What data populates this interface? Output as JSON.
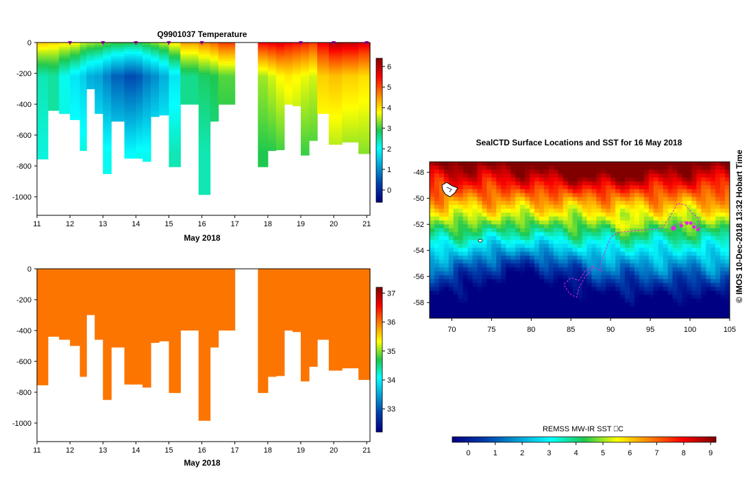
{
  "temp_title": "Q9901037  Temperature",
  "sal_title": "",
  "map_title": "SealCTD Surface Locations and SST for 16 May 2018",
  "credit": "© IMOS 10-Dec-2018 13:32 Hobart Time",
  "sst_colorbar_label": "REMSS MW-IR SST ⎕C",
  "colors": {
    "frame": "#000000",
    "track": "#e026e0",
    "salinity_fill": "#f39600",
    "profile_marker": "#c000c0"
  },
  "chart_data": [
    {
      "type": "heatmap",
      "name": "temperature-section",
      "title": "Q9901037  Temperature",
      "xlabel": "May 2018",
      "ylabel": "",
      "x_ticks": [
        "11",
        "12",
        "13",
        "14",
        "15",
        "16",
        "17",
        "18",
        "19",
        "20",
        "21"
      ],
      "y_ticks": [
        "0",
        "-200",
        "-400",
        "-600",
        "-800",
        "-1000"
      ],
      "xlim": [
        11,
        21.1
      ],
      "ylim": [
        -1120,
        0
      ],
      "colorbar_ticks": [
        "0",
        "1",
        "2",
        "3",
        "4",
        "5",
        "6"
      ],
      "colorbar_range": [
        -0.6,
        6.4
      ],
      "profile_marker_days": [
        12,
        13,
        14,
        15,
        16,
        19,
        20,
        21
      ],
      "gap_days": [
        17.0,
        17.7
      ],
      "profiles": [
        {
          "x0": 11.0,
          "x1": 11.33,
          "depth": 755,
          "surf": 4.2,
          "min": 2.4,
          "deep": 2.2
        },
        {
          "x0": 11.33,
          "x1": 11.67,
          "depth": 440,
          "surf": 4.1,
          "min": 2.5,
          "deep": 2.5
        },
        {
          "x0": 11.67,
          "x1": 12.0,
          "depth": 460,
          "surf": 4.0,
          "min": 2.1,
          "deep": 2.2
        },
        {
          "x0": 12.0,
          "x1": 12.3,
          "depth": 500,
          "surf": 3.9,
          "min": 1.8,
          "deep": 2.2
        },
        {
          "x0": 12.3,
          "x1": 12.5,
          "depth": 700,
          "surf": 3.6,
          "min": 1.6,
          "deep": 2.2
        },
        {
          "x0": 12.5,
          "x1": 12.75,
          "depth": 300,
          "surf": 3.5,
          "min": 1.3,
          "deep": 2.0
        },
        {
          "x0": 12.75,
          "x1": 13.0,
          "depth": 460,
          "surf": 3.4,
          "min": 1.2,
          "deep": 2.1
        },
        {
          "x0": 13.0,
          "x1": 13.25,
          "depth": 850,
          "surf": 3.2,
          "min": 0.9,
          "deep": 2.1
        },
        {
          "x0": 13.25,
          "x1": 13.65,
          "depth": 510,
          "surf": 3.1,
          "min": 0.6,
          "deep": 2.0
        },
        {
          "x0": 13.65,
          "x1": 14.0,
          "depth": 750,
          "surf": 3.0,
          "min": 0.4,
          "deep": 2.0
        },
        {
          "x0": 14.0,
          "x1": 14.2,
          "depth": 750,
          "surf": 3.0,
          "min": 0.5,
          "deep": 2.1
        },
        {
          "x0": 14.2,
          "x1": 14.45,
          "depth": 770,
          "surf": 3.2,
          "min": 0.8,
          "deep": 2.1
        },
        {
          "x0": 14.45,
          "x1": 14.7,
          "depth": 480,
          "surf": 3.4,
          "min": 1.0,
          "deep": 2.2
        },
        {
          "x0": 14.7,
          "x1": 15.0,
          "depth": 470,
          "surf": 3.6,
          "min": 1.3,
          "deep": 2.2
        },
        {
          "x0": 15.0,
          "x1": 15.35,
          "depth": 805,
          "surf": 4.0,
          "min": 1.8,
          "deep": 2.4
        },
        {
          "x0": 15.35,
          "x1": 15.9,
          "depth": 400,
          "surf": 4.5,
          "min": 2.6,
          "deep": 2.6
        },
        {
          "x0": 15.9,
          "x1": 16.25,
          "depth": 985,
          "surf": 4.7,
          "min": 2.8,
          "deep": 2.4
        },
        {
          "x0": 16.25,
          "x1": 16.5,
          "depth": 510,
          "surf": 4.9,
          "min": 2.9,
          "deep": 2.6
        },
        {
          "x0": 16.5,
          "x1": 17.0,
          "depth": 400,
          "surf": 5.2,
          "min": 3.1,
          "deep": 2.8
        },
        {
          "x0": 17.7,
          "x1": 18.0,
          "depth": 805,
          "surf": 5.6,
          "min": 3.4,
          "deep": 2.9
        },
        {
          "x0": 18.0,
          "x1": 18.25,
          "depth": 700,
          "surf": 5.7,
          "min": 3.6,
          "deep": 2.9
        },
        {
          "x0": 18.25,
          "x1": 18.5,
          "depth": 695,
          "surf": 5.8,
          "min": 3.8,
          "deep": 3.0
        },
        {
          "x0": 18.5,
          "x1": 18.75,
          "depth": 400,
          "surf": 5.6,
          "min": 3.9,
          "deep": 3.2
        },
        {
          "x0": 18.75,
          "x1": 19.0,
          "depth": 410,
          "surf": 5.5,
          "min": 3.8,
          "deep": 3.2
        },
        {
          "x0": 19.0,
          "x1": 19.25,
          "depth": 730,
          "surf": 5.4,
          "min": 3.7,
          "deep": 3.0
        },
        {
          "x0": 19.25,
          "x1": 19.5,
          "depth": 635,
          "surf": 5.2,
          "min": 3.6,
          "deep": 3.0
        },
        {
          "x0": 19.5,
          "x1": 19.85,
          "depth": 460,
          "surf": 5.7,
          "min": 4.1,
          "deep": 3.5
        },
        {
          "x0": 19.85,
          "x1": 20.25,
          "depth": 660,
          "surf": 6.1,
          "min": 4.2,
          "deep": 3.4
        },
        {
          "x0": 20.25,
          "x1": 20.75,
          "depth": 645,
          "surf": 6.0,
          "min": 4.1,
          "deep": 3.3
        },
        {
          "x0": 20.75,
          "x1": 21.1,
          "depth": 720,
          "surf": 5.8,
          "min": 4.0,
          "deep": 3.3
        }
      ]
    },
    {
      "type": "heatmap",
      "name": "salinity-section",
      "title": "",
      "xlabel": "May 2018",
      "ylabel": "",
      "x_ticks": [
        "11",
        "12",
        "13",
        "14",
        "15",
        "16",
        "17",
        "18",
        "19",
        "20",
        "21"
      ],
      "y_ticks": [
        "0",
        "-200",
        "-400",
        "-600",
        "-800",
        "-1000"
      ],
      "xlim": [
        11,
        21.1
      ],
      "ylim": [
        -1120,
        0
      ],
      "colorbar_ticks": [
        "33",
        "34",
        "35",
        "36",
        "37"
      ],
      "colorbar_range": [
        32.2,
        37.2
      ],
      "fill_value": 36.0
    },
    {
      "type": "heatmap",
      "name": "sst-map",
      "title": "SealCTD Surface Locations and SST for 16 May 2018",
      "xlabel": "",
      "ylabel": "",
      "x_ticks": [
        "70",
        "75",
        "80",
        "85",
        "90",
        "95",
        "100",
        "105"
      ],
      "y_ticks": [
        "-48",
        "-50",
        "-52",
        "-54",
        "-56",
        "-58"
      ],
      "xlim": [
        67.2,
        105
      ],
      "ylim": [
        -59.2,
        -47.2
      ],
      "colorbar_label": "REMSS MW-IR SST ⎕C",
      "colorbar_ticks": [
        "0",
        "1",
        "2",
        "3",
        "4",
        "5",
        "6",
        "7",
        "8",
        "9"
      ],
      "colorbar_range": [
        -0.6,
        9.2
      ],
      "surface_locations": [
        {
          "lon": 97.9,
          "lat": -52.3
        },
        {
          "lon": 98.9,
          "lat": -52.1
        },
        {
          "lon": 99.6,
          "lat": -51.9
        },
        {
          "lon": 100.1,
          "lat": -51.9
        },
        {
          "lon": 100.5,
          "lat": -52.2
        },
        {
          "lon": 101.0,
          "lat": -52.4
        }
      ],
      "track": [
        [
          97.7,
          -52.3
        ],
        [
          98.3,
          -52.0
        ],
        [
          99.3,
          -51.8
        ],
        [
          100.5,
          -51.9
        ],
        [
          101.3,
          -52.4
        ],
        [
          101.0,
          -51.5
        ],
        [
          100.2,
          -51.1
        ],
        [
          99.4,
          -50.5
        ],
        [
          98.4,
          -50.4
        ],
        [
          97.6,
          -51.3
        ],
        [
          96.5,
          -52.3
        ],
        [
          95.0,
          -52.4
        ],
        [
          93.0,
          -52.5
        ],
        [
          91.0,
          -52.6
        ],
        [
          90.0,
          -53.0
        ],
        [
          89.3,
          -54.1
        ],
        [
          88.7,
          -55.0
        ],
        [
          88.9,
          -55.6
        ],
        [
          87.7,
          -55.2
        ],
        [
          86.8,
          -55.6
        ],
        [
          86.0,
          -56.3
        ],
        [
          85.0,
          -56.1
        ],
        [
          84.1,
          -56.6
        ],
        [
          84.8,
          -57.3
        ],
        [
          85.7,
          -57.6
        ],
        [
          86.0,
          -56.9
        ],
        [
          86.8,
          -56.0
        ],
        [
          88.0,
          -55.3
        ]
      ]
    }
  ]
}
